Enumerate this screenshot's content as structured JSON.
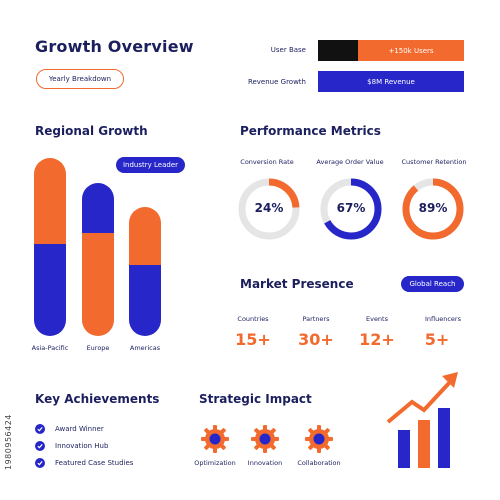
{
  "header": {
    "title": "Growth Overview",
    "button_label": "Yearly Breakdown"
  },
  "top_stats": [
    {
      "label": "User Base",
      "value": "+150k Users"
    },
    {
      "label": "Revenue Growth",
      "value": "$8M Revenue"
    }
  ],
  "regional": {
    "title": "Regional Growth",
    "badge": "Industry Leader",
    "columns": [
      {
        "label": "Asia-Pacific"
      },
      {
        "label": "Europe"
      },
      {
        "label": "Americas"
      }
    ]
  },
  "performance": {
    "title": "Performance Metrics",
    "metrics": [
      {
        "label": "Conversion Rate",
        "value": "24%",
        "percent": 24,
        "color": "#f26a2e"
      },
      {
        "label": "Average Order Value",
        "value": "67%",
        "percent": 67,
        "color": "#2626c9"
      },
      {
        "label": "Customer Retention",
        "value": "89%",
        "percent": 89,
        "color": "#f26a2e"
      }
    ]
  },
  "market": {
    "title": "Market Presence",
    "badge": "Global Reach",
    "items": [
      {
        "label": "Countries",
        "value": "15+"
      },
      {
        "label": "Partners",
        "value": "30+"
      },
      {
        "label": "Events",
        "value": "12+"
      },
      {
        "label": "Influencers",
        "value": "5+"
      }
    ]
  },
  "achievements": {
    "title": "Key Achievements",
    "items": [
      "Award Winner",
      "Innovation Hub",
      "Featured Case Studies"
    ]
  },
  "impact": {
    "title": "Strategic Impact",
    "items": [
      "Optimization",
      "Innovation",
      "Collaboration"
    ]
  },
  "colors": {
    "navy": "#1b1f5e",
    "blue": "#2626c9",
    "orange": "#f26a2e",
    "black": "#111111"
  },
  "watermark_id": "1980956424"
}
